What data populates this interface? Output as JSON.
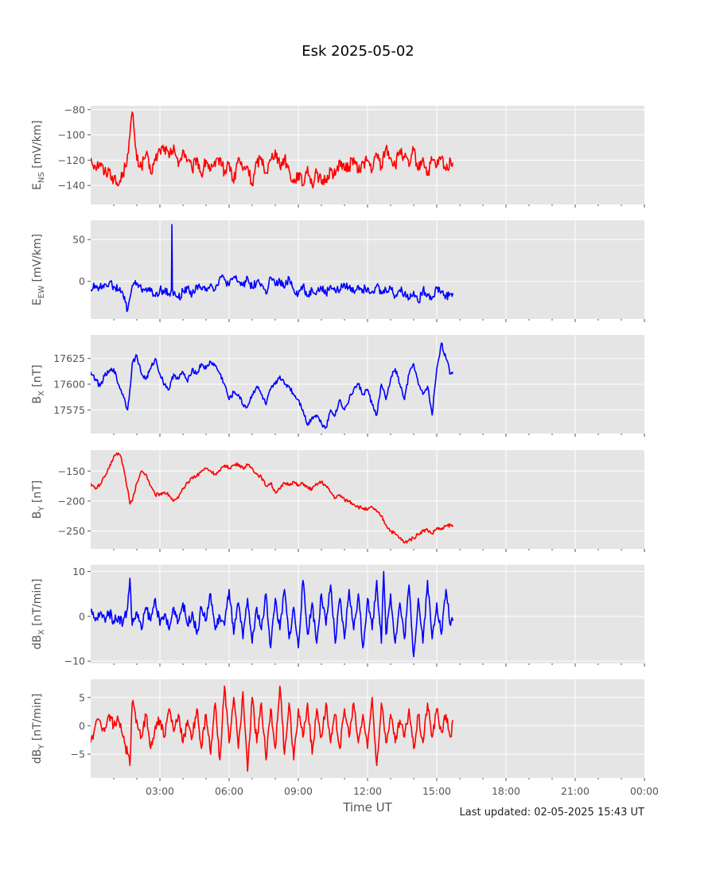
{
  "title": "Esk 2025-05-02",
  "xlabel": "Time UT",
  "footer": "Last updated: 02-05-2025 15:43 UT",
  "x_ticks": [
    "03:00",
    "06:00",
    "09:00",
    "12:00",
    "15:00",
    "18:00",
    "21:00",
    "00:00"
  ],
  "chart_data": [
    {
      "type": "line",
      "ylabel_main": "E",
      "ylabel_sub": "NS",
      "ylabel_unit": " [mV/km]",
      "color": "#ff0000",
      "xlim": [
        0,
        24
      ],
      "ylim": [
        -155,
        -77
      ],
      "yticks": [
        -80,
        -100,
        -120,
        -140
      ],
      "ytick_labels": [
        "−80",
        "−100",
        "−120",
        "−140"
      ],
      "x": [
        0.0,
        0.2,
        0.4,
        0.6,
        0.8,
        1.0,
        1.2,
        1.4,
        1.5,
        1.6,
        1.7,
        1.8,
        1.9,
        2.0,
        2.2,
        2.4,
        2.6,
        2.8,
        3.0,
        3.2,
        3.4,
        3.6,
        3.8,
        4.0,
        4.2,
        4.4,
        4.6,
        4.8,
        5.0,
        5.2,
        5.4,
        5.6,
        5.8,
        6.0,
        6.2,
        6.4,
        6.6,
        6.8,
        7.0,
        7.2,
        7.4,
        7.6,
        7.8,
        8.0,
        8.2,
        8.4,
        8.6,
        8.8,
        9.0,
        9.2,
        9.4,
        9.6,
        9.8,
        10.0,
        10.2,
        10.4,
        10.6,
        10.8,
        11.0,
        11.2,
        11.4,
        11.6,
        11.8,
        12.0,
        12.2,
        12.4,
        12.6,
        12.8,
        13.0,
        13.2,
        13.4,
        13.6,
        13.8,
        14.0,
        14.2,
        14.4,
        14.6,
        14.8,
        15.0,
        15.2,
        15.4,
        15.6,
        15.7
      ],
      "y": [
        -118,
        -125,
        -122,
        -130,
        -128,
        -135,
        -140,
        -130,
        -125,
        -115,
        -100,
        -82,
        -100,
        -120,
        -125,
        -115,
        -130,
        -120,
        -112,
        -110,
        -118,
        -108,
        -125,
        -112,
        -120,
        -128,
        -118,
        -132,
        -120,
        -128,
        -125,
        -118,
        -130,
        -122,
        -138,
        -118,
        -128,
        -125,
        -140,
        -122,
        -118,
        -130,
        -120,
        -112,
        -125,
        -118,
        -128,
        -138,
        -130,
        -140,
        -125,
        -140,
        -130,
        -138,
        -135,
        -128,
        -132,
        -120,
        -128,
        -125,
        -118,
        -130,
        -122,
        -120,
        -128,
        -115,
        -125,
        -110,
        -118,
        -125,
        -112,
        -118,
        -125,
        -112,
        -128,
        -118,
        -132,
        -120,
        -125,
        -118,
        -128,
        -120,
        -122
      ],
      "noise": 5
    },
    {
      "type": "line",
      "ylabel_main": "E",
      "ylabel_sub": "EW",
      "ylabel_unit": " [mV/km]",
      "color": "#0000ff",
      "xlim": [
        0,
        24
      ],
      "ylim": [
        -45,
        73
      ],
      "yticks": [
        50,
        0
      ],
      "ytick_labels": [
        "50",
        "0"
      ],
      "x": [
        0.0,
        0.2,
        0.4,
        0.6,
        0.8,
        1.0,
        1.2,
        1.4,
        1.5,
        1.6,
        1.7,
        1.8,
        2.0,
        2.2,
        2.4,
        2.6,
        2.8,
        3.0,
        3.2,
        3.4,
        3.5,
        3.52,
        3.54,
        3.56,
        3.6,
        3.8,
        4.0,
        4.2,
        4.4,
        4.6,
        4.8,
        5.0,
        5.2,
        5.4,
        5.6,
        5.8,
        6.0,
        6.2,
        6.4,
        6.6,
        6.8,
        7.0,
        7.2,
        7.4,
        7.6,
        7.8,
        8.0,
        8.2,
        8.4,
        8.6,
        8.8,
        9.0,
        9.2,
        9.4,
        9.6,
        9.8,
        10.0,
        10.2,
        10.4,
        10.6,
        10.8,
        11.0,
        11.2,
        11.4,
        11.6,
        11.8,
        12.0,
        12.2,
        12.4,
        12.6,
        12.8,
        13.0,
        13.2,
        13.4,
        13.6,
        13.8,
        14.0,
        14.2,
        14.4,
        14.6,
        14.8,
        15.0,
        15.2,
        15.4,
        15.6,
        15.7
      ],
      "y": [
        -10,
        -5,
        -8,
        -3,
        -2,
        -6,
        -10,
        -15,
        -25,
        -35,
        -20,
        -5,
        -2,
        -10,
        -8,
        -12,
        -18,
        -10,
        -12,
        -15,
        -10,
        68,
        -10,
        -12,
        -15,
        -20,
        -12,
        -8,
        -15,
        -5,
        -10,
        -8,
        -3,
        -10,
        5,
        2,
        -5,
        5,
        0,
        -5,
        5,
        -8,
        0,
        -3,
        -15,
        5,
        -5,
        0,
        -8,
        5,
        -10,
        -15,
        -5,
        -18,
        -10,
        -12,
        -8,
        -15,
        -5,
        -12,
        -10,
        -3,
        -8,
        -12,
        -5,
        -10,
        -8,
        -12,
        -5,
        -15,
        -10,
        -8,
        -18,
        -10,
        -15,
        -20,
        -12,
        -25,
        -10,
        -15,
        -20,
        -8,
        -12,
        -18,
        -15,
        -14
      ],
      "noise": 5
    },
    {
      "type": "line",
      "ylabel_main": "B",
      "ylabel_sub": "X",
      "ylabel_unit": " [nT]",
      "color": "#0000ff",
      "xlim": [
        0,
        24
      ],
      "ylim": [
        17552,
        17648
      ],
      "yticks": [
        17625,
        17600,
        17575
      ],
      "ytick_labels": [
        "17625",
        "17600",
        "17575"
      ],
      "x": [
        0.0,
        0.2,
        0.4,
        0.6,
        0.8,
        1.0,
        1.2,
        1.4,
        1.6,
        1.7,
        1.8,
        2.0,
        2.2,
        2.4,
        2.6,
        2.8,
        3.0,
        3.2,
        3.4,
        3.6,
        3.8,
        4.0,
        4.2,
        4.4,
        4.6,
        4.8,
        5.0,
        5.2,
        5.4,
        5.6,
        5.8,
        6.0,
        6.2,
        6.4,
        6.6,
        6.8,
        7.0,
        7.2,
        7.4,
        7.6,
        7.8,
        8.0,
        8.2,
        8.4,
        8.6,
        8.8,
        9.0,
        9.2,
        9.4,
        9.6,
        9.8,
        10.0,
        10.2,
        10.4,
        10.6,
        10.8,
        11.0,
        11.2,
        11.4,
        11.6,
        11.8,
        12.0,
        12.2,
        12.4,
        12.6,
        12.8,
        13.0,
        13.2,
        13.4,
        13.6,
        13.8,
        14.0,
        14.2,
        14.4,
        14.6,
        14.8,
        15.0,
        15.2,
        15.4,
        15.6,
        15.7
      ],
      "y": [
        17612,
        17605,
        17598,
        17608,
        17612,
        17615,
        17600,
        17590,
        17575,
        17595,
        17620,
        17628,
        17610,
        17605,
        17615,
        17625,
        17610,
        17600,
        17595,
        17610,
        17605,
        17612,
        17602,
        17615,
        17610,
        17620,
        17615,
        17622,
        17618,
        17610,
        17600,
        17585,
        17592,
        17590,
        17580,
        17578,
        17590,
        17598,
        17590,
        17580,
        17595,
        17600,
        17608,
        17600,
        17598,
        17590,
        17585,
        17575,
        17560,
        17568,
        17570,
        17562,
        17558,
        17575,
        17570,
        17585,
        17575,
        17585,
        17595,
        17600,
        17590,
        17595,
        17580,
        17570,
        17600,
        17585,
        17605,
        17615,
        17600,
        17585,
        17610,
        17620,
        17600,
        17590,
        17598,
        17570,
        17615,
        17640,
        17625,
        17610,
        17612
      ],
      "noise": 2.5
    },
    {
      "type": "line",
      "ylabel_main": "B",
      "ylabel_sub": "Y",
      "ylabel_unit": " [nT]",
      "color": "#ff0000",
      "xlim": [
        0,
        24
      ],
      "ylim": [
        -280,
        -115
      ],
      "yticks": [
        -150,
        -200,
        -250
      ],
      "ytick_labels": [
        "−150",
        "−200",
        "−250"
      ],
      "x": [
        0.0,
        0.2,
        0.4,
        0.6,
        0.8,
        1.0,
        1.2,
        1.3,
        1.4,
        1.6,
        1.7,
        1.8,
        2.0,
        2.2,
        2.4,
        2.6,
        2.8,
        3.0,
        3.2,
        3.4,
        3.6,
        3.8,
        4.0,
        4.2,
        4.4,
        4.6,
        4.8,
        5.0,
        5.2,
        5.4,
        5.6,
        5.8,
        6.0,
        6.2,
        6.4,
        6.6,
        6.8,
        7.0,
        7.2,
        7.4,
        7.6,
        7.8,
        8.0,
        8.2,
        8.4,
        8.6,
        8.8,
        9.0,
        9.2,
        9.4,
        9.6,
        9.8,
        10.0,
        10.2,
        10.4,
        10.6,
        10.8,
        11.0,
        11.2,
        11.4,
        11.6,
        11.8,
        12.0,
        12.2,
        12.4,
        12.6,
        12.8,
        13.0,
        13.2,
        13.4,
        13.6,
        13.8,
        14.0,
        14.2,
        14.4,
        14.6,
        14.8,
        15.0,
        15.2,
        15.4,
        15.6,
        15.7
      ],
      "y": [
        -170,
        -180,
        -172,
        -160,
        -145,
        -125,
        -120,
        -125,
        -140,
        -180,
        -205,
        -200,
        -170,
        -150,
        -155,
        -175,
        -190,
        -188,
        -185,
        -190,
        -200,
        -195,
        -180,
        -170,
        -160,
        -158,
        -150,
        -145,
        -150,
        -155,
        -150,
        -140,
        -145,
        -140,
        -138,
        -145,
        -140,
        -145,
        -155,
        -160,
        -175,
        -170,
        -185,
        -180,
        -170,
        -172,
        -168,
        -175,
        -170,
        -178,
        -180,
        -172,
        -168,
        -175,
        -185,
        -195,
        -190,
        -198,
        -200,
        -205,
        -210,
        -212,
        -215,
        -210,
        -218,
        -225,
        -240,
        -250,
        -255,
        -262,
        -270,
        -265,
        -262,
        -255,
        -250,
        -248,
        -255,
        -245,
        -248,
        -242,
        -240,
        -243
      ],
      "noise": 3
    },
    {
      "type": "line",
      "ylabel_main": "dB",
      "ylabel_sub": "X",
      "ylabel_unit": " [nT/min]",
      "color": "#0000ff",
      "xlim": [
        0,
        24
      ],
      "ylim": [
        -10.5,
        11.5
      ],
      "yticks": [
        10,
        0,
        -10
      ],
      "ytick_labels": [
        "10",
        "0",
        "−10"
      ],
      "x": [
        0.0,
        0.2,
        0.4,
        0.6,
        0.8,
        1.0,
        1.2,
        1.4,
        1.6,
        1.7,
        1.8,
        2.0,
        2.2,
        2.4,
        2.6,
        2.8,
        3.0,
        3.2,
        3.4,
        3.6,
        3.8,
        4.0,
        4.2,
        4.4,
        4.6,
        4.8,
        5.0,
        5.2,
        5.4,
        5.6,
        5.8,
        6.0,
        6.2,
        6.4,
        6.6,
        6.8,
        7.0,
        7.2,
        7.4,
        7.6,
        7.8,
        8.0,
        8.2,
        8.4,
        8.6,
        8.8,
        9.0,
        9.2,
        9.4,
        9.6,
        9.8,
        10.0,
        10.2,
        10.4,
        10.6,
        10.8,
        11.0,
        11.2,
        11.4,
        11.6,
        11.8,
        12.0,
        12.2,
        12.4,
        12.6,
        12.7,
        12.8,
        13.0,
        13.2,
        13.4,
        13.6,
        13.8,
        14.0,
        14.2,
        14.4,
        14.6,
        14.8,
        15.0,
        15.2,
        15.4,
        15.6,
        15.7
      ],
      "y": [
        1,
        -1,
        0.5,
        -0.5,
        1,
        -1,
        0,
        -1.5,
        2,
        8.5,
        -2,
        1,
        -3,
        2,
        -1,
        4,
        -2,
        0.5,
        -3,
        2,
        -1,
        3,
        -2,
        1,
        -4,
        2,
        -1,
        5,
        -3,
        0,
        -2,
        6,
        -4,
        3,
        -5,
        4,
        -6,
        2,
        -3,
        5,
        -7,
        4,
        -3,
        6,
        -5,
        2,
        -7,
        8,
        -4,
        3,
        -6,
        5,
        -2,
        7,
        -6,
        4,
        -5,
        6,
        -3,
        5,
        -7,
        4,
        -3,
        8,
        -6,
        10,
        -4,
        5,
        -6,
        3,
        -5,
        7,
        -9,
        4,
        -6,
        8,
        -5,
        3,
        -4,
        6,
        -2,
        -1
      ],
      "noise": 1.2
    },
    {
      "type": "line",
      "ylabel_main": "dB",
      "ylabel_sub": "Y",
      "ylabel_unit": " [nT/min]",
      "color": "#ff0000",
      "xlim": [
        0,
        24
      ],
      "ylim": [
        -9.2,
        8.2
      ],
      "yticks": [
        5,
        0,
        -5
      ],
      "ytick_labels": [
        "5",
        "0",
        "−5"
      ],
      "x": [
        0.0,
        0.2,
        0.4,
        0.6,
        0.8,
        1.0,
        1.2,
        1.4,
        1.6,
        1.7,
        1.8,
        2.0,
        2.2,
        2.4,
        2.6,
        2.8,
        3.0,
        3.2,
        3.4,
        3.6,
        3.8,
        4.0,
        4.2,
        4.4,
        4.6,
        4.8,
        5.0,
        5.2,
        5.4,
        5.6,
        5.8,
        6.0,
        6.2,
        6.4,
        6.6,
        6.8,
        7.0,
        7.2,
        7.4,
        7.6,
        7.8,
        8.0,
        8.2,
        8.4,
        8.6,
        8.8,
        9.0,
        9.2,
        9.4,
        9.6,
        9.8,
        10.0,
        10.2,
        10.4,
        10.6,
        10.8,
        11.0,
        11.2,
        11.4,
        11.6,
        11.8,
        12.0,
        12.2,
        12.4,
        12.6,
        12.8,
        13.0,
        13.2,
        13.4,
        13.6,
        13.8,
        14.0,
        14.2,
        14.4,
        14.6,
        14.8,
        15.0,
        15.2,
        15.4,
        15.6,
        15.7
      ],
      "y": [
        -3,
        0,
        1,
        -1,
        2,
        0,
        1,
        -2,
        -5,
        -7,
        4,
        1,
        -2,
        2,
        -4,
        0,
        1,
        -2,
        3,
        -1,
        2,
        -3,
        1,
        -2,
        3,
        -4,
        2,
        -5,
        4,
        -6,
        7,
        -3,
        5,
        -4,
        6,
        -8,
        5,
        -3,
        4,
        -6,
        3,
        -4,
        7,
        -5,
        4,
        -6,
        3,
        -2,
        4,
        -5,
        3,
        -2,
        4,
        -3,
        2,
        -4,
        3,
        -2,
        4,
        -3,
        2,
        -4,
        5,
        -7,
        4,
        -3,
        2,
        -3,
        1,
        -2,
        3,
        -4,
        2,
        -3,
        4,
        -2,
        3,
        -1,
        2,
        -2,
        1
      ],
      "noise": 1
    }
  ]
}
